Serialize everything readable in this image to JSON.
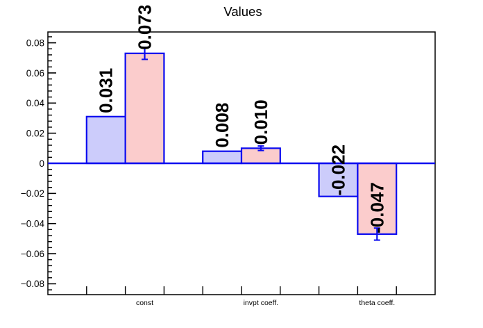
{
  "chart_data": {
    "type": "bar",
    "title": "Values",
    "categories": [
      "const",
      "invpt coeff.",
      "theta coeff."
    ],
    "series": [
      {
        "name": "left-lavender-bars",
        "fill": "#ccccfb",
        "edge": "#0b0bf0",
        "values": [
          0.031,
          0.008,
          -0.022
        ],
        "value_labels": [
          "0.031",
          "0.008",
          "-0.022"
        ]
      },
      {
        "name": "right-pink-bars",
        "fill": "#fbcccc",
        "edge": "#0b0bf0",
        "values": [
          0.073,
          0.01,
          -0.047
        ],
        "value_labels": [
          "0.073",
          "0.010",
          "-0.047"
        ],
        "errors": [
          0.004,
          0.0015,
          0.004
        ]
      }
    ],
    "ylim": [
      -0.0872,
      0.0872
    ],
    "yticks": [
      {
        "v": 0.08,
        "label": "0.08"
      },
      {
        "v": 0.06,
        "label": "0.06"
      },
      {
        "v": 0.04,
        "label": "0.04"
      },
      {
        "v": 0.02,
        "label": "0.02"
      },
      {
        "v": 0.0,
        "label": "0"
      },
      {
        "v": -0.02,
        "label": "−0.02"
      },
      {
        "v": -0.04,
        "label": "−0.04"
      },
      {
        "v": -0.06,
        "label": "−0.06"
      },
      {
        "v": -0.08,
        "label": "−0.08"
      }
    ],
    "minor_tick_step": 0.004,
    "bin_count": 10,
    "bar_bins": {
      "left-lavender-bars": [
        1,
        4,
        7
      ],
      "right-pink-bars": [
        2,
        5,
        8
      ]
    },
    "zero_line_color": "#0b0bf0",
    "axis_color": "#000000",
    "text_color": "#000000",
    "background": "#ffffff",
    "grid": false,
    "legend": null
  }
}
